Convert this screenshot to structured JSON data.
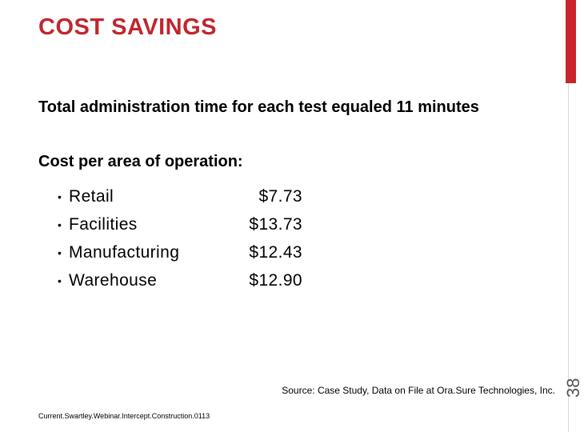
{
  "slide": {
    "title": "COST SAVINGS",
    "paragraph1": "Total administration time for each test equaled 11 minutes",
    "paragraph2": "Cost per area of operation:",
    "items": [
      {
        "bullet": "•",
        "label": "Retail",
        "value": "$7.73"
      },
      {
        "bullet": "•",
        "label": "Facilities",
        "value": "$13.73"
      },
      {
        "bullet": "•",
        "label": "Manufacturing",
        "value": "$12.43"
      },
      {
        "bullet": "•",
        "label": "Warehouse",
        "value": "$12.90"
      }
    ],
    "source": "Source: Case Study, Data on File at Ora.Sure Technologies, Inc.",
    "footer": "Current.Swartley.Webinar.Intercept.Construction.0113",
    "slide_number": "38"
  },
  "colors": {
    "title": "#c0272d",
    "accent_bar": "#c8262c"
  }
}
